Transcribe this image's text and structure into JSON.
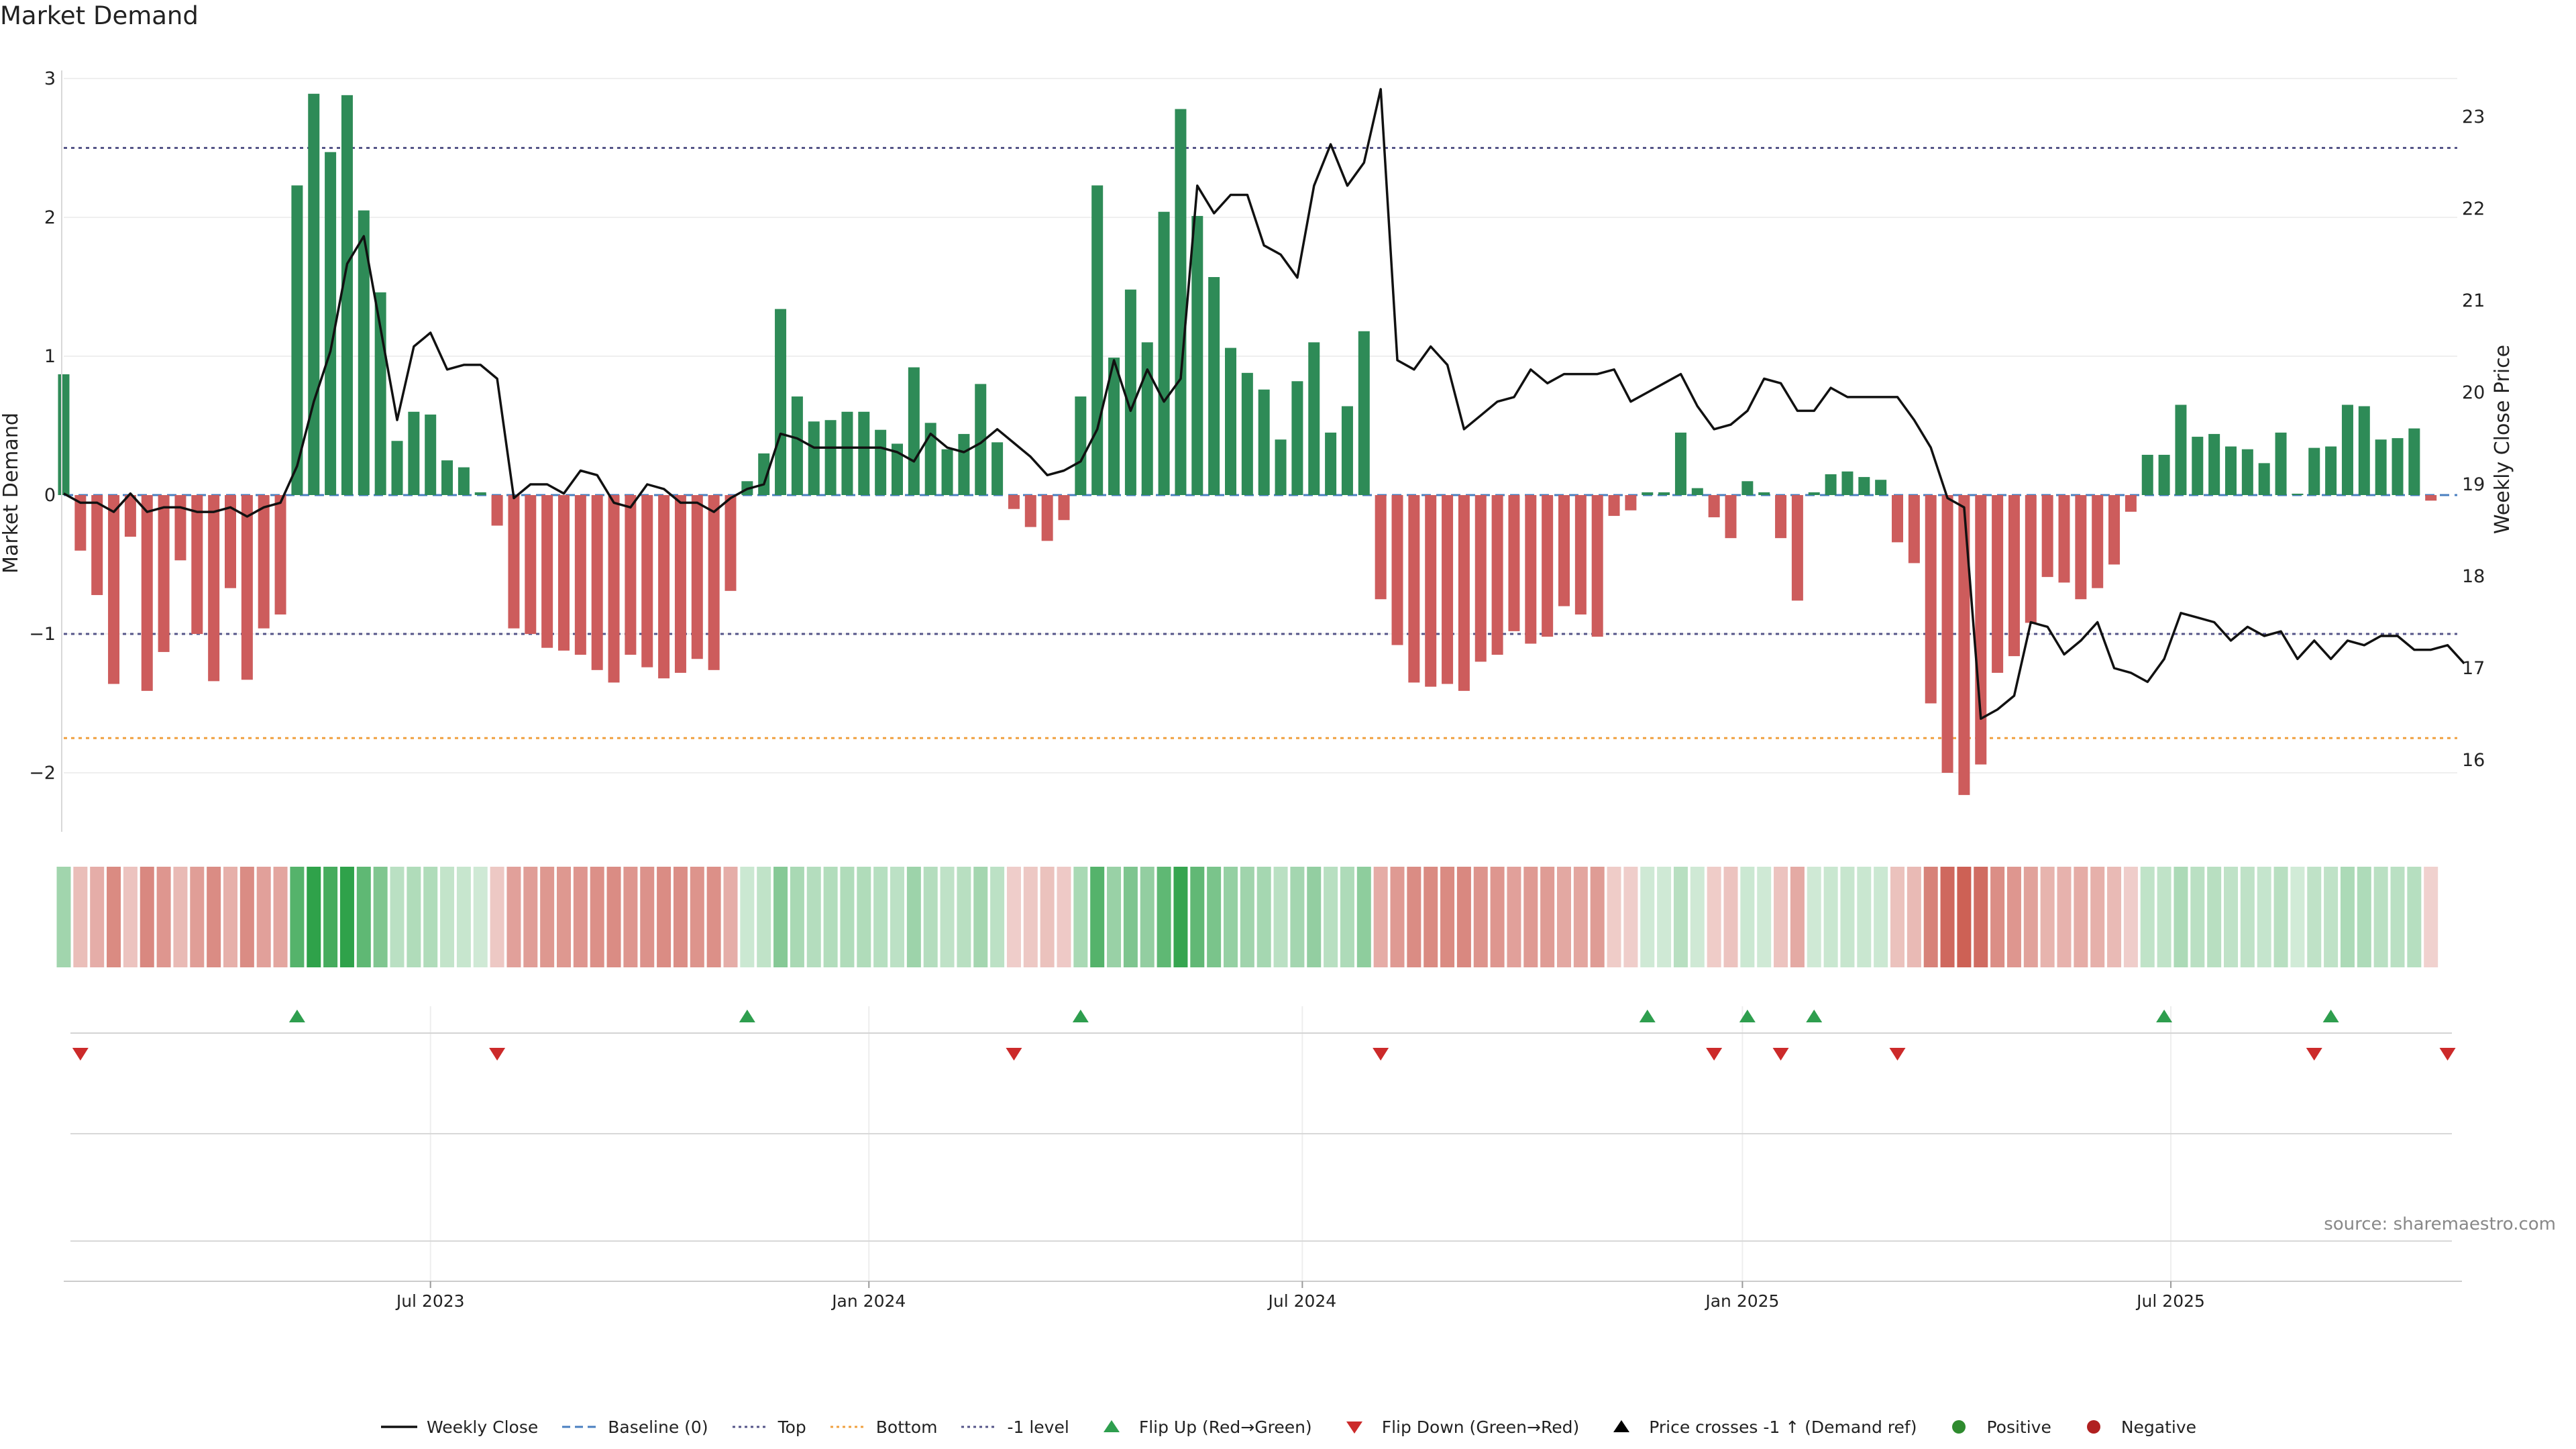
{
  "chart_data": {
    "type": "bar+line",
    "title": "Market Demand",
    "source": "source: sharemaestro.com",
    "ylabel_left": "Market Demand",
    "ylabel_right": "Weekly Close Price",
    "ylim_left": [
      -2.4,
      3.1
    ],
    "ylim_right": [
      15.4,
      23.6
    ],
    "yticks_left": [
      3,
      2,
      1,
      0,
      -1,
      -2
    ],
    "ytick_labels_left": [
      "3",
      "2",
      "1",
      "0",
      "−1",
      "−2"
    ],
    "yticks_right": [
      23,
      22,
      21,
      20,
      19,
      18,
      17,
      16
    ],
    "x_start": "2022-12-26",
    "weeks": 145,
    "xticks": [
      {
        "label": "Jul 2023",
        "week": 22.0
      },
      {
        "label": "Jan 2024",
        "week": 48.3
      },
      {
        "label": "Jul 2024",
        "week": 74.3
      },
      {
        "label": "Jan 2025",
        "week": 100.7
      },
      {
        "label": "Jul 2025",
        "week": 126.4
      }
    ],
    "reference_lines": [
      {
        "name": "Top",
        "value": 2.5,
        "color": "#555588",
        "style": "dotted"
      },
      {
        "name": "-1 level",
        "value": -1.0,
        "color": "#555588",
        "style": "dotted"
      },
      {
        "name": "Bottom",
        "value": -1.75,
        "color": "#f0a040",
        "style": "dotted"
      }
    ],
    "series": [
      {
        "name": "Market Demand",
        "values": [
          0.87,
          -0.4,
          -0.72,
          -1.36,
          -0.3,
          -1.41,
          -1.13,
          -0.47,
          -1.0,
          -1.34,
          -0.67,
          -1.33,
          -0.96,
          -0.86,
          2.23,
          2.89,
          2.47,
          2.88,
          2.05,
          1.46,
          0.39,
          0.6,
          0.58,
          0.25,
          0.2,
          0.02,
          -0.22,
          -0.96,
          -1.0,
          -1.1,
          -1.12,
          -1.15,
          -1.26,
          -1.35,
          -1.15,
          -1.24,
          -1.32,
          -1.28,
          -1.18,
          -1.26,
          -0.69,
          0.1,
          0.3,
          1.34,
          0.71,
          0.53,
          0.54,
          0.6,
          0.6,
          0.47,
          0.37,
          0.92,
          0.52,
          0.33,
          0.44,
          0.8,
          0.38,
          -0.1,
          -0.23,
          -0.33,
          -0.18,
          0.71,
          2.23,
          0.99,
          1.48,
          1.1,
          2.04,
          2.78,
          2.01,
          1.57,
          1.06,
          0.88,
          0.76,
          0.4,
          0.82,
          1.1,
          0.45,
          0.64,
          1.18,
          -0.75,
          -1.08,
          -1.35,
          -1.38,
          -1.36,
          -1.41,
          -1.2,
          -1.15,
          -0.98,
          -1.07,
          -1.02,
          -0.8,
          -0.86,
          -1.02,
          -0.15,
          -0.11,
          0.02,
          0.02,
          0.45,
          0.05,
          -0.16,
          -0.31,
          0.1,
          0.02,
          -0.31,
          -0.76,
          0.02,
          0.15,
          0.17,
          0.13,
          0.11,
          -0.34,
          -0.49,
          -1.5,
          -2.0,
          -2.16,
          -1.94,
          -1.28,
          -1.16,
          -0.92,
          -0.59,
          -0.63,
          -0.75,
          -0.67,
          -0.5,
          -0.12,
          0.29,
          0.29,
          0.65,
          0.42,
          0.44,
          0.35,
          0.33,
          0.23,
          0.45,
          0.01,
          0.34,
          0.35,
          0.65,
          0.64,
          0.4,
          0.41,
          0.48,
          -0.04
        ]
      },
      {
        "name": "Weekly Close",
        "values": [
          18.9,
          18.8,
          18.8,
          18.7,
          18.9,
          18.7,
          18.75,
          18.75,
          18.7,
          18.7,
          18.75,
          18.65,
          18.75,
          18.8,
          19.2,
          19.9,
          20.45,
          21.4,
          21.7,
          20.7,
          19.7,
          20.5,
          20.65,
          20.25,
          20.3,
          20.3,
          20.15,
          18.85,
          19.0,
          19.0,
          18.9,
          19.15,
          19.1,
          18.8,
          18.75,
          19.0,
          18.95,
          18.8,
          18.8,
          18.7,
          18.85,
          18.95,
          19.0,
          19.55,
          19.5,
          19.4,
          19.4,
          19.4,
          19.4,
          19.4,
          19.35,
          19.25,
          19.55,
          19.4,
          19.35,
          19.45,
          19.6,
          19.45,
          19.3,
          19.1,
          19.15,
          19.25,
          19.6,
          20.35,
          19.8,
          20.25,
          19.9,
          20.15,
          22.25,
          21.95,
          22.15,
          22.15,
          21.6,
          21.5,
          21.25,
          22.25,
          22.7,
          22.25,
          22.5,
          23.3,
          20.35,
          20.25,
          20.5,
          20.3,
          19.6,
          19.75,
          19.9,
          19.95,
          20.25,
          20.1,
          20.2,
          20.2,
          20.2,
          20.25,
          19.9,
          20.0,
          20.1,
          20.2,
          19.85,
          19.6,
          19.65,
          19.8,
          20.15,
          20.1,
          19.8,
          19.8,
          20.05,
          19.95,
          19.95,
          19.95,
          19.95,
          19.7,
          19.4,
          18.85,
          18.75,
          16.45,
          16.55,
          16.7,
          17.5,
          17.45,
          17.15,
          17.3,
          17.5,
          17.0,
          16.95,
          16.85,
          17.1,
          17.6,
          17.55,
          17.5,
          17.3,
          17.45,
          17.35,
          17.4,
          17.1,
          17.3,
          17.1,
          17.3,
          17.25,
          17.35,
          17.35,
          17.2,
          17.2,
          17.25,
          17.05
        ]
      }
    ],
    "flip_up_weeks": [
      14,
      41,
      61,
      95,
      101,
      105,
      126,
      136
    ],
    "flip_down_weeks": [
      1,
      26,
      57,
      79,
      99,
      103,
      110,
      135,
      143
    ],
    "legend": [
      {
        "label": "Weekly Close",
        "kind": "line",
        "color": "#111111"
      },
      {
        "label": "Baseline (0)",
        "kind": "dashed",
        "color": "#4a7fc0"
      },
      {
        "label": "Top",
        "kind": "dotted",
        "color": "#555588"
      },
      {
        "label": "Bottom",
        "kind": "dotted",
        "color": "#f0a040"
      },
      {
        "label": "-1 level",
        "kind": "dotted",
        "color": "#555588"
      },
      {
        "label": "Flip Up (Red→Green)",
        "kind": "tri-up",
        "color": "#2e9e4e"
      },
      {
        "label": "Flip Down (Green→Red)",
        "kind": "tri-down",
        "color": "#cc2a2a"
      },
      {
        "label": "Price crosses -1 ↑ (Demand ref)",
        "kind": "tri-up",
        "color": "#000000"
      },
      {
        "label": "Positive",
        "kind": "dot",
        "color": "#2e8b2e"
      },
      {
        "label": "Negative",
        "kind": "dot",
        "color": "#b02020"
      }
    ],
    "colors": {
      "positive_bar": "#2e8b57",
      "negative_bar": "#cd5c5c",
      "price_line": "#111111",
      "grid": "#e8e8e8"
    }
  }
}
